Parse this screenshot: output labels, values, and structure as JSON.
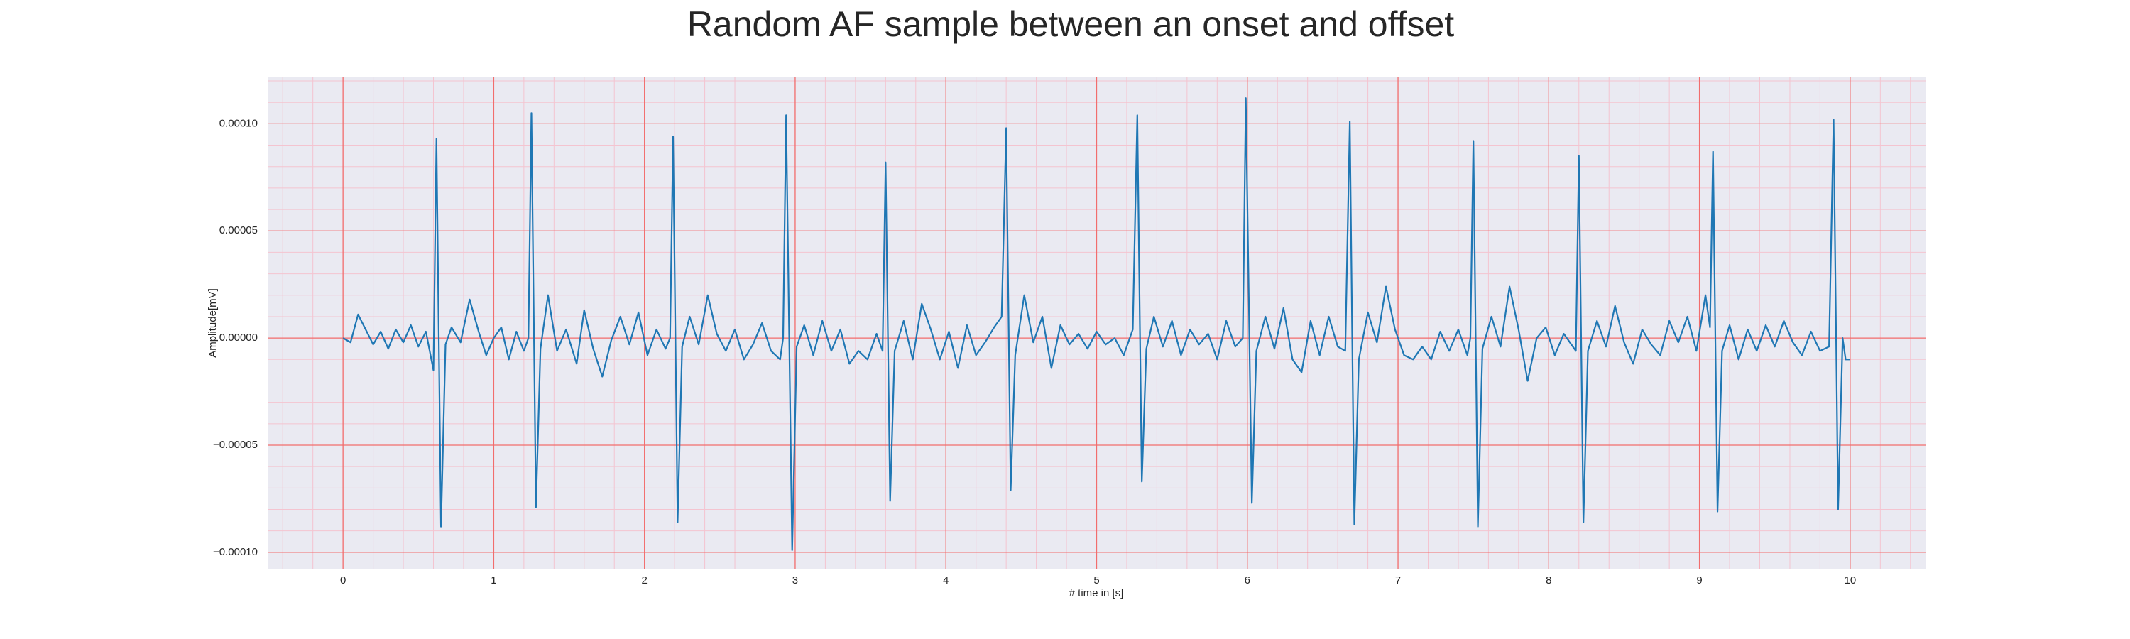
{
  "chart_data": {
    "type": "line",
    "title": "Random AF sample between an onset and offset",
    "xlabel": "# time in [s]",
    "ylabel": "Amplitude[mV]",
    "x": [
      0,
      0.05,
      0.1,
      0.15,
      0.2,
      0.25,
      0.3,
      0.35,
      0.4,
      0.45,
      0.5,
      0.55,
      0.6,
      0.62,
      0.65,
      0.68,
      0.72,
      0.78,
      0.84,
      0.9,
      0.95,
      1,
      1.05,
      1.1,
      1.15,
      1.2,
      1.23,
      1.25,
      1.28,
      1.31,
      1.36,
      1.42,
      1.48,
      1.55,
      1.6,
      1.66,
      1.72,
      1.78,
      1.84,
      1.9,
      1.96,
      2.02,
      2.08,
      2.14,
      2.17,
      2.19,
      2.22,
      2.25,
      2.3,
      2.36,
      2.42,
      2.48,
      2.54,
      2.6,
      2.66,
      2.72,
      2.78,
      2.84,
      2.9,
      2.92,
      2.94,
      2.98,
      3.01,
      3.06,
      3.12,
      3.18,
      3.24,
      3.3,
      3.36,
      3.42,
      3.48,
      3.54,
      3.58,
      3.6,
      3.63,
      3.66,
      3.72,
      3.78,
      3.84,
      3.9,
      3.96,
      4.02,
      4.08,
      4.14,
      4.2,
      4.26,
      4.32,
      4.37,
      4.4,
      4.43,
      4.46,
      4.52,
      4.58,
      4.64,
      4.7,
      4.76,
      4.82,
      4.88,
      4.94,
      5,
      5.06,
      5.12,
      5.18,
      5.24,
      5.27,
      5.3,
      5.33,
      5.38,
      5.44,
      5.5,
      5.56,
      5.62,
      5.68,
      5.74,
      5.8,
      5.86,
      5.92,
      5.97,
      5.99,
      6.03,
      6.06,
      6.12,
      6.18,
      6.24,
      6.3,
      6.36,
      6.42,
      6.48,
      6.54,
      6.6,
      6.65,
      6.68,
      6.71,
      6.74,
      6.8,
      6.86,
      6.92,
      6.98,
      7.04,
      7.1,
      7.16,
      7.22,
      7.28,
      7.34,
      7.4,
      7.46,
      7.48,
      7.5,
      7.53,
      7.56,
      7.62,
      7.68,
      7.74,
      7.8,
      7.86,
      7.92,
      7.98,
      8.04,
      8.1,
      8.16,
      8.18,
      8.2,
      8.23,
      8.26,
      8.32,
      8.38,
      8.44,
      8.5,
      8.56,
      8.62,
      8.68,
      8.74,
      8.8,
      8.86,
      8.92,
      8.98,
      9.04,
      9.07,
      9.09,
      9.12,
      9.15,
      9.2,
      9.26,
      9.32,
      9.38,
      9.44,
      9.5,
      9.56,
      9.62,
      9.68,
      9.74,
      9.8,
      9.86,
      9.89,
      9.92,
      9.95,
      9.97,
      10
    ],
    "values": [
      0,
      -2e-06,
      1.1e-05,
      4e-06,
      -3e-06,
      3e-06,
      -5e-06,
      4e-06,
      -2e-06,
      6e-06,
      -4e-06,
      3e-06,
      -1.5e-05,
      9.3e-05,
      -8.8e-05,
      -3e-06,
      5e-06,
      -2e-06,
      1.8e-05,
      3e-06,
      -8e-06,
      0,
      5e-06,
      -1e-05,
      3e-06,
      -6e-06,
      0,
      0.000105,
      -7.9e-05,
      -5e-06,
      2e-05,
      -6e-06,
      4e-06,
      -1.2e-05,
      1.3e-05,
      -5e-06,
      -1.8e-05,
      -1e-06,
      1e-05,
      -3e-06,
      1.2e-05,
      -8e-06,
      4e-06,
      -5e-06,
      0,
      9.4e-05,
      -8.6e-05,
      -4e-06,
      1e-05,
      -3e-06,
      2e-05,
      2e-06,
      -6e-06,
      4e-06,
      -1e-05,
      -3e-06,
      7e-06,
      -6e-06,
      -1e-05,
      0,
      0.000104,
      -9.9e-05,
      -4e-06,
      6e-06,
      -8e-06,
      8e-06,
      -6e-06,
      4e-06,
      -1.2e-05,
      -6e-06,
      -1e-05,
      2e-06,
      -6e-06,
      8.2e-05,
      -7.6e-05,
      -6e-06,
      8e-06,
      -1e-05,
      1.6e-05,
      4e-06,
      -1e-05,
      3e-06,
      -1.4e-05,
      6e-06,
      -8e-06,
      -2e-06,
      5e-06,
      1e-05,
      9.8e-05,
      -7.1e-05,
      -8e-06,
      2e-05,
      -2e-06,
      1e-05,
      -1.4e-05,
      6e-06,
      -3e-06,
      2e-06,
      -5e-06,
      3e-06,
      -3e-06,
      0,
      -8e-06,
      4e-06,
      0.000104,
      -6.7e-05,
      -5e-06,
      1e-05,
      -4e-06,
      8e-06,
      -8e-06,
      4e-06,
      -3e-06,
      2e-06,
      -1e-05,
      8e-06,
      -4e-06,
      0,
      0.000112,
      -7.7e-05,
      -6e-06,
      1e-05,
      -5e-06,
      1.4e-05,
      -1e-05,
      -1.6e-05,
      8e-06,
      -8e-06,
      1e-05,
      -4e-06,
      -6e-06,
      0.000101,
      -8.7e-05,
      -1e-05,
      1.2e-05,
      -2e-06,
      2.4e-05,
      4e-06,
      -8e-06,
      -1e-05,
      -4e-06,
      -1e-05,
      3e-06,
      -6e-06,
      4e-06,
      -8e-06,
      0,
      9.2e-05,
      -8.8e-05,
      -5e-06,
      1e-05,
      -4e-06,
      2.4e-05,
      4e-06,
      -2e-05,
      0,
      5e-06,
      -8e-06,
      2e-06,
      -4e-06,
      -6e-06,
      8.5e-05,
      -8.6e-05,
      -6e-06,
      8e-06,
      -4e-06,
      1.5e-05,
      -2e-06,
      -1.2e-05,
      4e-06,
      -3e-06,
      -8e-06,
      8e-06,
      -2e-06,
      1e-05,
      -6e-06,
      2e-05,
      5e-06,
      8.7e-05,
      -8.1e-05,
      -6e-06,
      6e-06,
      -1e-05,
      4e-06,
      -6e-06,
      6e-06,
      -4e-06,
      8e-06,
      -2e-06,
      -8e-06,
      3e-06,
      -6e-06,
      -4e-06,
      0.000102,
      -8e-05,
      0,
      -1e-05,
      -1e-05
    ],
    "color": "#1f77b4",
    "xlim": [
      -0.5,
      10.5
    ],
    "xticks": [
      0,
      1,
      2,
      3,
      4,
      5,
      6,
      7,
      8,
      9,
      10
    ],
    "ylim": [
      -0.000108,
      0.000122
    ],
    "yticks": [
      {
        "value": 0.0001,
        "label": "0.00010"
      },
      {
        "value": 5e-05,
        "label": "0.00005"
      },
      {
        "value": 0,
        "label": "0.00000"
      },
      {
        "value": -5e-05,
        "label": "−0.00005"
      },
      {
        "value": -0.0001,
        "label": "−0.00010"
      }
    ],
    "grid": true,
    "minor_grid": true,
    "grid_color": "#f26d6d",
    "minor_grid_color": "#f4c4d0",
    "background": "#eaeaf2"
  }
}
